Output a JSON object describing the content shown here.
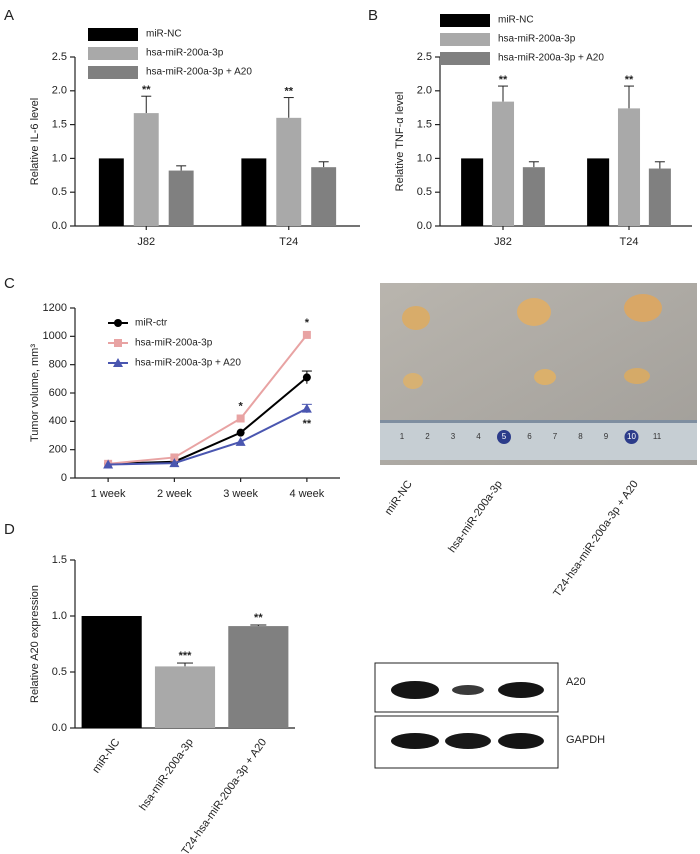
{
  "chart_data": [
    {
      "panel": "A",
      "type": "bar",
      "y_label": "Relative IL-6 level",
      "categories": [
        "J82",
        "T24"
      ],
      "series": [
        {
          "name": "miR-NC",
          "color": "#000000",
          "values": [
            1,
            1
          ],
          "errors": [
            null,
            null
          ]
        },
        {
          "name": "hsa-miR-200a-3p",
          "color": "#a9a9a9",
          "values": [
            1.67,
            1.6
          ],
          "errors": [
            0.25,
            0.3
          ]
        },
        {
          "name": "hsa-miR-200a-3p + A20",
          "color": "#808080",
          "values": [
            0.82,
            0.87
          ],
          "errors": [
            0.07,
            0.08
          ]
        }
      ],
      "annotations": [
        {
          "series": 1,
          "index": 0,
          "text": "**"
        },
        {
          "series": 1,
          "index": 1,
          "text": "**"
        }
      ],
      "ylim": [
        0,
        2.5
      ],
      "yticks": [
        {
          "value": 0,
          "label": "0.0"
        },
        0.5,
        {
          "value": 1,
          "label": "1.0"
        },
        1.5,
        {
          "value": 2,
          "label": "2.0"
        },
        2.5
      ],
      "legend": "top-left"
    },
    {
      "panel": "B",
      "type": "bar",
      "y_label": "Relative TNF-α level",
      "categories": [
        "J82",
        "T24"
      ],
      "series": [
        {
          "name": "miR-NC",
          "color": "#000000",
          "values": [
            1,
            1
          ],
          "errors": [
            null,
            null
          ]
        },
        {
          "name": "hsa-miR-200a-3p",
          "color": "#a9a9a9",
          "values": [
            1.84,
            1.74
          ],
          "errors": [
            0.23,
            0.33
          ]
        },
        {
          "name": "hsa-miR-200a-3p + A20",
          "color": "#808080",
          "values": [
            0.87,
            0.85
          ],
          "errors": [
            0.08,
            0.1
          ]
        }
      ],
      "annotations": [
        {
          "series": 1,
          "index": 0,
          "text": "**"
        },
        {
          "series": 1,
          "index": 1,
          "text": "**"
        }
      ],
      "ylim": [
        0,
        2.5
      ],
      "yticks": [
        {
          "value": 0,
          "label": "0.0"
        },
        0.5,
        {
          "value": 1,
          "label": "1.0"
        },
        1.5,
        {
          "value": 2,
          "label": "2.0"
        },
        2.5
      ],
      "legend": "top-left"
    },
    {
      "panel": "C",
      "type": "line",
      "y_label": "Tumor volume, mm³",
      "categories": [
        "1 week",
        "2 week",
        "3 week",
        "4 week"
      ],
      "series": [
        {
          "name": "miR-ctr",
          "color": "#000000",
          "marker": "circle",
          "values": [
            100,
            115,
            320,
            710
          ],
          "errors": [
            null,
            null,
            null,
            45
          ]
        },
        {
          "name": "hsa-miR-200a-3p",
          "color": "#e8a3a3",
          "marker": "square",
          "values": [
            100,
            145,
            420,
            1010
          ],
          "errors": [
            null,
            null,
            null,
            null
          ]
        },
        {
          "name": "hsa-miR-200a-3p + A20",
          "color": "#4a56b0",
          "marker": "triangle",
          "values": [
            95,
            105,
            255,
            490
          ],
          "errors": [
            null,
            null,
            null,
            30
          ]
        }
      ],
      "annotations": [
        {
          "series": 1,
          "index": 2,
          "text": "*"
        },
        {
          "series": 1,
          "index": 3,
          "text": "*"
        },
        {
          "series": 2,
          "index": 3,
          "text": "**"
        }
      ],
      "ylim": [
        0,
        1200
      ],
      "yticks": [
        0,
        200,
        400,
        600,
        800,
        1000,
        1200
      ],
      "legend": "top-left"
    },
    {
      "panel": "D",
      "type": "single-bar",
      "y_label": "Relative A20 expression",
      "categories": [
        "miR-NC",
        "hsa-miR-200a-3p",
        "T24-hsa-miR-200a-3p + A20"
      ],
      "values": [
        1,
        0.55,
        0.91
      ],
      "errors": [
        null,
        0.03,
        0.01
      ],
      "colors": [
        "#000000",
        "#a9a9a9",
        "#808080"
      ],
      "annotations": [
        {
          "index": 1,
          "text": "***"
        },
        {
          "index": 2,
          "text": "**"
        }
      ],
      "ylim": [
        0,
        1.5
      ],
      "yticks": [
        {
          "value": 0,
          "label": "0.0"
        },
        0.5,
        {
          "value": 1,
          "label": "1.0"
        },
        1.5
      ]
    }
  ],
  "photo": {
    "sample_labels": [
      "miR-NC",
      "hsa-miR-200a-3p",
      "T24-hsa-miR-200a-3p + A20"
    ],
    "ruler_labels": [
      "1",
      "2",
      "3",
      "4",
      "5",
      "6",
      "7",
      "8",
      "9",
      "10",
      "11"
    ]
  },
  "blot": {
    "bands": [
      "A20",
      "GAPDH"
    ]
  }
}
